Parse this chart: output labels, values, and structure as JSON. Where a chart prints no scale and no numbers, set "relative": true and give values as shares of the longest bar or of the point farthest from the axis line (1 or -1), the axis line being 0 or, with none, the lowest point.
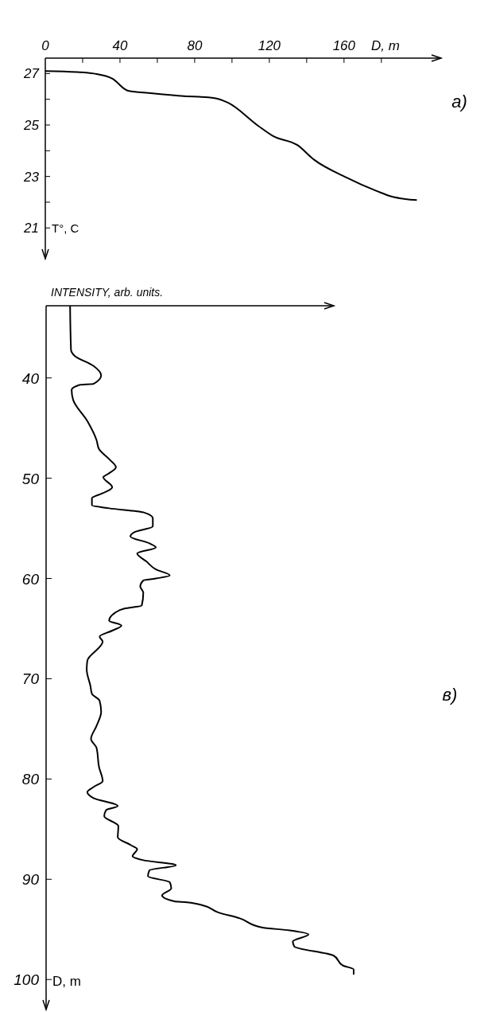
{
  "chart_data": [
    {
      "type": "line",
      "annotations": [
        "a)"
      ],
      "xlabel": "D, m",
      "ylabel": "T°, C",
      "xlim": [
        0,
        212
      ],
      "ylim": [
        19.8,
        27.6
      ],
      "xticks": [
        0,
        {
          "value": 20,
          "label": null
        },
        40,
        {
          "value": 60,
          "label": null
        },
        80,
        {
          "value": 100,
          "label": null
        },
        120,
        {
          "value": 140,
          "label": null
        },
        160,
        {
          "value": 180,
          "label": null
        }
      ],
      "yticks": [
        27,
        {
          "value": 26,
          "label": null
        },
        25,
        {
          "value": 24,
          "label": null
        },
        23,
        {
          "value": 22,
          "label": null
        },
        21
      ],
      "series": [
        {
          "color": "#000000",
          "x": [
            0,
            17,
            26,
            36,
            44,
            54,
            73,
            90,
            98,
            114,
            122,
            135,
            144,
            161,
            178,
            185,
            199
          ],
          "values": [
            27.1,
            27.06,
            27.0,
            26.8,
            26.34,
            26.25,
            26.13,
            26.05,
            25.86,
            24.97,
            24.57,
            24.22,
            23.65,
            22.97,
            22.42,
            22.23,
            22.08
          ]
        }
      ]
    },
    {
      "type": "line",
      "annotations": [
        "в)"
      ],
      "xlabel": "INTENSITY, arb. units.",
      "ylabel": "D, m",
      "orientation": "horizontal",
      "relative": true,
      "ylim": [
        103,
        32.8
      ],
      "yticks": [
        40,
        50,
        60,
        70,
        80,
        90,
        100
      ],
      "series": [
        {
          "color": "#000000",
          "x": [
            32.8,
            37.2,
            37.8,
            38.8,
            39.75,
            40.6,
            40.7,
            41.2,
            42.2,
            44.3,
            46.2,
            47.1,
            48.1,
            48.9,
            49.6,
            49.9,
            50.9,
            51.5,
            52.0,
            52.7,
            53.0,
            53.4,
            54.0,
            54.8,
            55.4,
            55.8,
            56.5,
            56.9,
            57.5,
            58.3,
            59.1,
            59.7,
            60.0,
            60.2,
            60.8,
            61.4,
            62.7,
            63.0,
            63.4,
            64.2,
            64.7,
            65.2,
            65.8,
            66.3,
            68.2,
            69.1,
            70.7,
            71.5,
            72.2,
            73.3,
            74.7,
            76.0,
            76.9,
            78.8,
            80.2,
            80.8,
            81.3,
            81.9,
            82.7,
            83.1,
            83.7,
            84.7,
            85.8,
            86.6,
            87.0,
            87.7,
            88.1,
            88.6,
            89.1,
            89.7,
            90.3,
            90.9,
            91.6,
            92.2,
            92.3,
            92.6,
            93.3,
            93.9,
            94.8,
            95.1,
            95.5,
            96.2,
            96.7,
            97.6,
            98.6,
            99.0,
            99.5
          ],
          "values": [
            0.078,
            0.081,
            0.093,
            0.154,
            0.179,
            0.154,
            0.108,
            0.083,
            0.088,
            0.134,
            0.164,
            0.172,
            0.205,
            0.227,
            0.2,
            0.186,
            0.215,
            0.184,
            0.149,
            0.149,
            0.205,
            0.316,
            0.347,
            0.347,
            0.286,
            0.274,
            0.336,
            0.357,
            0.296,
            0.326,
            0.357,
            0.402,
            0.357,
            0.316,
            0.306,
            0.316,
            0.311,
            0.255,
            0.225,
            0.205,
            0.245,
            0.215,
            0.174,
            0.184,
            0.134,
            0.132,
            0.144,
            0.149,
            0.174,
            0.179,
            0.164,
            0.146,
            0.164,
            0.172,
            0.184,
            0.154,
            0.134,
            0.154,
            0.233,
            0.195,
            0.189,
            0.235,
            0.233,
            0.276,
            0.296,
            0.281,
            0.316,
            0.422,
            0.336,
            0.331,
            0.402,
            0.407,
            0.377,
            0.417,
            0.458,
            0.509,
            0.559,
            0.63,
            0.701,
            0.792,
            0.853,
            0.802,
            0.807,
            0.934,
            0.965,
            1.0,
            1.0
          ]
        }
      ]
    }
  ]
}
